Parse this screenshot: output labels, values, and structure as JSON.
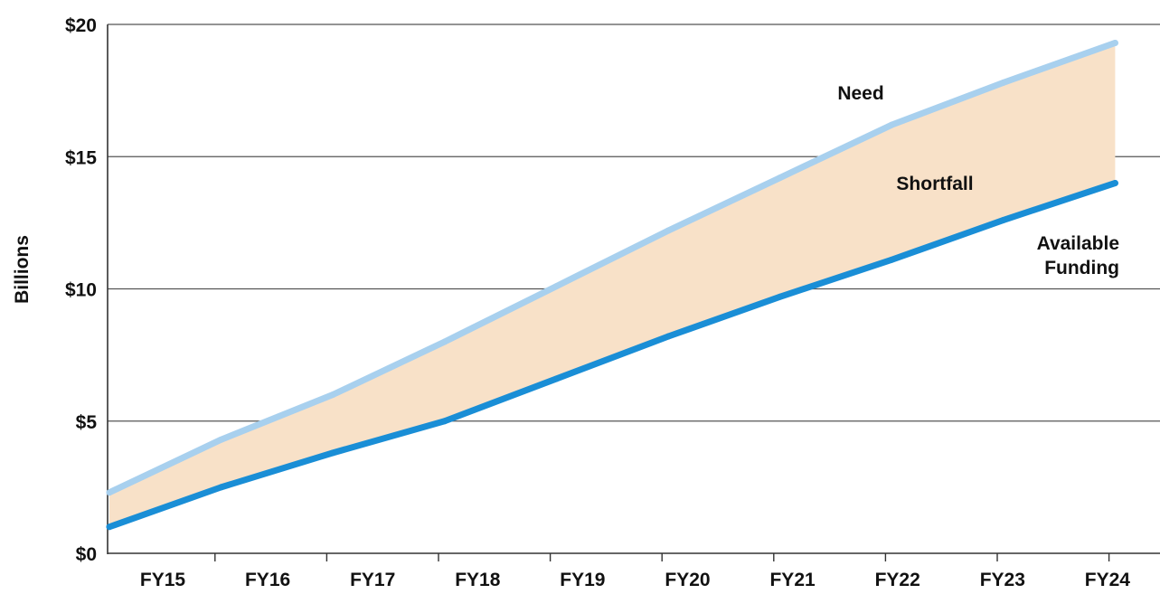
{
  "chart_data": {
    "type": "area",
    "categories": [
      "FY15",
      "FY16",
      "FY17",
      "FY18",
      "FY19",
      "FY20",
      "FY21",
      "FY22",
      "FY23",
      "FY24"
    ],
    "series": [
      {
        "name": "Need",
        "values": [
          2.3,
          4.3,
          6.0,
          8.0,
          10.1,
          12.2,
          14.2,
          16.2,
          17.8,
          19.3
        ]
      },
      {
        "name": "Available Funding",
        "values": [
          1.0,
          2.5,
          3.8,
          5.0,
          6.6,
          8.2,
          9.7,
          11.1,
          12.6,
          14.0
        ]
      }
    ],
    "shaded_region_label": "Shortfall",
    "ylabel": "Billions",
    "xlabel": "",
    "ylim": [
      0,
      20
    ],
    "y_ticks": [
      0,
      5,
      10,
      15,
      20
    ],
    "y_tick_labels": [
      "$0",
      "$5",
      "$10",
      "$15",
      "$20"
    ],
    "grid": true,
    "legend": "none (inline labels)",
    "colors": {
      "need": "#a8d0ee",
      "available_funding": "#1a8ed6",
      "shortfall_fill": "#f8e1c8",
      "gridline": "#555555",
      "axis": "#333333"
    }
  }
}
